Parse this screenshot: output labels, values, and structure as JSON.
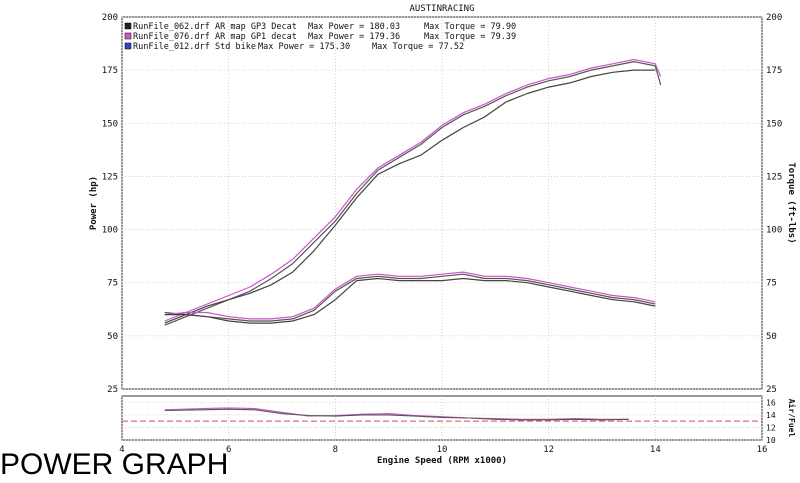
{
  "caption": "POWER GRAPH",
  "chart_data": {
    "type": "line",
    "title": "AUSTINRACING",
    "xlabel": "Engine Speed (RPM x1000)",
    "ylabel_left": "Power (hp)",
    "ylabel_right": "Torque (ft-lbs)",
    "ylabel_afr": "Air/Fuel",
    "xlim": [
      4,
      16
    ],
    "ylim": [
      25,
      200
    ],
    "x_ticks": [
      4,
      6,
      8,
      10,
      12,
      14,
      16
    ],
    "y_ticks_left": [
      25,
      50,
      75,
      100,
      125,
      150,
      175,
      200
    ],
    "y_ticks_right": [
      25,
      50,
      75,
      100,
      125,
      150,
      175,
      200
    ],
    "afr_ylim": [
      10,
      17
    ],
    "afr_ticks": [
      10,
      12,
      14,
      16
    ],
    "afr_reference": 13,
    "grid": true,
    "legend_position": "top-left",
    "legend": [
      {
        "file": "RunFile_062.drf",
        "label": "AR map GP3 Decat",
        "power_label": "Max Power = 180.03",
        "torque_label": "Max Torque = 79.90",
        "color": "#222222"
      },
      {
        "file": "RunFile_076.drf",
        "label": "AR map GP1 decat",
        "power_label": "Max Power = 179.36",
        "torque_label": "Max Torque = 79.39",
        "color": "#cc55cc"
      },
      {
        "file": "RunFile_012.drf",
        "label": "Std bike",
        "power_label": "Max Power = 175.30",
        "torque_label": "Max Torque = 77.52",
        "color": "#3344cc"
      }
    ],
    "series": [
      {
        "kind": "power",
        "legend_index": 0,
        "color": "#555555",
        "x": [
          4.8,
          5.2,
          5.6,
          6.0,
          6.4,
          6.8,
          7.2,
          7.6,
          8.0,
          8.4,
          8.8,
          9.2,
          9.6,
          10.0,
          10.4,
          10.8,
          11.2,
          11.6,
          12.0,
          12.4,
          12.8,
          13.2,
          13.6,
          14.0,
          14.1
        ],
        "y": [
          55,
          59,
          63,
          67,
          71,
          77,
          84,
          94,
          104,
          117,
          128,
          134,
          140,
          148,
          154,
          158,
          163,
          167,
          170,
          172,
          175,
          177,
          179,
          177,
          168
        ]
      },
      {
        "kind": "power",
        "legend_index": 1,
        "color": "#cc55cc",
        "x": [
          4.8,
          5.2,
          5.6,
          6.0,
          6.4,
          6.8,
          7.2,
          7.6,
          8.0,
          8.4,
          8.8,
          9.2,
          9.6,
          10.0,
          10.4,
          10.8,
          11.2,
          11.6,
          12.0,
          12.4,
          12.8,
          13.2,
          13.6,
          14.0,
          14.1
        ],
        "y": [
          57,
          61,
          65,
          69,
          73,
          79,
          86,
          96,
          106,
          119,
          129,
          135,
          141,
          149,
          155,
          159,
          164,
          168,
          171,
          173,
          176,
          178,
          180,
          178,
          172
        ]
      },
      {
        "kind": "power",
        "legend_index": 2,
        "color": "#444444",
        "x": [
          4.8,
          5.2,
          5.6,
          6.0,
          6.4,
          6.8,
          7.2,
          7.6,
          8.0,
          8.4,
          8.8,
          9.2,
          9.6,
          10.0,
          10.4,
          10.8,
          11.2,
          11.6,
          12.0,
          12.4,
          12.8,
          13.2,
          13.6,
          14.0
        ],
        "y": [
          56,
          60,
          64,
          67,
          70,
          74,
          80,
          90,
          102,
          115,
          126,
          131,
          135,
          142,
          148,
          153,
          160,
          164,
          167,
          169,
          172,
          174,
          175,
          175
        ]
      },
      {
        "kind": "torque",
        "legend_index": 0,
        "color": "#555555",
        "x": [
          4.8,
          5.2,
          5.6,
          6.0,
          6.4,
          6.8,
          7.2,
          7.6,
          8.0,
          8.4,
          8.8,
          9.2,
          9.6,
          10.0,
          10.4,
          10.8,
          11.2,
          11.6,
          12.0,
          12.4,
          12.8,
          13.2,
          13.6,
          14.0
        ],
        "y": [
          61,
          60,
          59,
          58,
          57,
          57,
          58,
          62,
          71,
          77,
          78,
          77,
          77,
          78,
          79,
          77,
          77,
          76,
          74,
          72,
          70,
          68,
          67,
          65
        ]
      },
      {
        "kind": "torque",
        "legend_index": 1,
        "color": "#cc55cc",
        "x": [
          4.8,
          5.2,
          5.6,
          6.0,
          6.4,
          6.8,
          7.2,
          7.6,
          8.0,
          8.4,
          8.8,
          9.2,
          9.6,
          10.0,
          10.4,
          10.8,
          11.2,
          11.6,
          12.0,
          12.4,
          12.8,
          13.2,
          13.6,
          14.0
        ],
        "y": [
          60,
          61,
          61,
          59,
          58,
          58,
          59,
          63,
          72,
          78,
          79,
          78,
          78,
          79,
          80,
          78,
          78,
          77,
          75,
          73,
          71,
          69,
          68,
          66
        ]
      },
      {
        "kind": "torque",
        "legend_index": 2,
        "color": "#444444",
        "x": [
          4.8,
          5.2,
          5.6,
          6.0,
          6.4,
          6.8,
          7.2,
          7.6,
          8.0,
          8.4,
          8.8,
          9.2,
          9.6,
          10.0,
          10.4,
          10.8,
          11.2,
          11.6,
          12.0,
          12.4,
          12.8,
          13.2,
          13.6,
          14.0
        ],
        "y": [
          60,
          60,
          59,
          57,
          56,
          56,
          57,
          60,
          67,
          76,
          77,
          76,
          76,
          76,
          77,
          76,
          76,
          75,
          73,
          71,
          69,
          67,
          66,
          64
        ]
      },
      {
        "kind": "afr",
        "legend_index": 0,
        "color": "#cc55cc",
        "x": [
          4.8,
          5.5,
          6.0,
          6.5,
          7.0,
          7.5,
          8.0,
          8.5,
          9.0,
          9.5,
          10.0,
          10.5,
          11.0,
          11.5,
          12.0,
          12.5,
          13.0,
          13.5
        ],
        "y": [
          14.8,
          15.0,
          15.1,
          15.0,
          14.4,
          13.8,
          13.9,
          14.1,
          14.2,
          13.9,
          13.7,
          13.5,
          13.4,
          13.3,
          13.3,
          13.4,
          13.3,
          13.3
        ]
      },
      {
        "kind": "afr",
        "legend_index": 1,
        "color": "#555555",
        "x": [
          4.8,
          5.5,
          6.0,
          6.5,
          7.0,
          7.5,
          8.0,
          8.5,
          9.0,
          9.5,
          10.0,
          10.5,
          11.0,
          11.5,
          12.0,
          12.5,
          13.0,
          13.5
        ],
        "y": [
          14.7,
          14.8,
          14.9,
          14.8,
          14.2,
          13.9,
          13.8,
          14.0,
          14.0,
          13.8,
          13.6,
          13.5,
          13.3,
          13.2,
          13.2,
          13.3,
          13.2,
          13.3
        ]
      }
    ]
  }
}
